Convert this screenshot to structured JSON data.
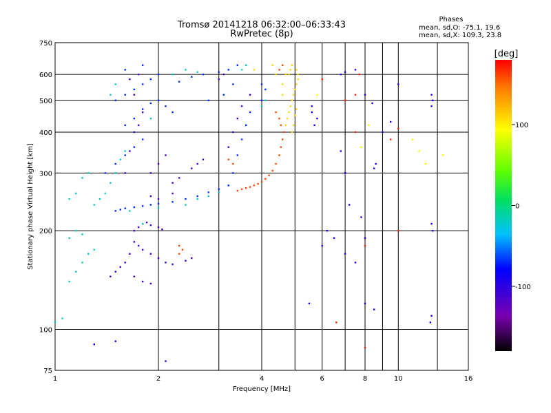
{
  "chart_data": {
    "type": "scatter",
    "title": "Tromsø 20141218 06:32:00–06:33:43",
    "subtitle": "RwPretec (8p)",
    "xlabel": "Frequency [MHz]",
    "ylabel": "Stationary phase Virtual Height [km]",
    "x_scale": "log2",
    "y_scale": "log",
    "xlim": [
      1,
      16
    ],
    "ylim": [
      75,
      750
    ],
    "x_ticks": [
      1,
      2,
      4,
      6,
      8,
      10,
      16
    ],
    "x_tick_labels": [
      "1",
      "2",
      "4",
      "6",
      "8",
      "10",
      "16"
    ],
    "x_grid_only": [
      3,
      5,
      7,
      9,
      13
    ],
    "y_ticks": [
      75,
      100,
      200,
      300,
      400,
      500,
      600,
      750
    ],
    "y_tick_labels": [
      "75",
      "100",
      "200",
      "300",
      "400",
      "500",
      "600",
      "750"
    ],
    "grid": true,
    "phase_stats": {
      "heading": "Phases",
      "line1": "mean, sd,O: -75.1, 19.6",
      "line2": "mean, sd,X: 109.3, 23.8"
    },
    "colorbar": {
      "label": "[deg]",
      "range": [
        -180,
        180
      ],
      "ticks": [
        100,
        0,
        -100
      ],
      "tick_labels": [
        "100",
        "0",
        "-100"
      ]
    },
    "series": [
      {
        "color_value_deg": -70,
        "points": [
          [
            1.5,
            230
          ],
          [
            1.55,
            232
          ],
          [
            1.6,
            234
          ],
          [
            1.7,
            236
          ],
          [
            1.8,
            238
          ],
          [
            1.9,
            240
          ],
          [
            2.0,
            242
          ],
          [
            2.2,
            245
          ],
          [
            2.4,
            250
          ],
          [
            2.6,
            255
          ],
          [
            2.8,
            262
          ],
          [
            3.0,
            268
          ],
          [
            3.2,
            275
          ],
          [
            1.4,
            300
          ],
          [
            1.5,
            320
          ],
          [
            1.6,
            340
          ],
          [
            1.7,
            360
          ],
          [
            1.8,
            380
          ],
          [
            1.6,
            420
          ],
          [
            1.7,
            440
          ],
          [
            1.8,
            470
          ],
          [
            1.9,
            490
          ],
          [
            2.0,
            500
          ],
          [
            2.1,
            480
          ],
          [
            2.2,
            460
          ],
          [
            1.5,
            500
          ],
          [
            1.6,
            520
          ],
          [
            1.7,
            540
          ],
          [
            1.8,
            560
          ],
          [
            1.9,
            580
          ],
          [
            2.0,
            600
          ],
          [
            1.6,
            620
          ],
          [
            1.8,
            640
          ],
          [
            2.3,
            570
          ],
          [
            2.5,
            590
          ],
          [
            2.7,
            600
          ],
          [
            3.0,
            610
          ],
          [
            3.2,
            620
          ],
          [
            3.4,
            640
          ],
          [
            2.8,
            500
          ],
          [
            3.1,
            520
          ],
          [
            3.3,
            560
          ],
          [
            3.3,
            300
          ],
          [
            3.4,
            340
          ],
          [
            3.5,
            380
          ],
          [
            3.6,
            420
          ],
          [
            3.7,
            460
          ],
          [
            4.0,
            500
          ],
          [
            4.1,
            540
          ],
          [
            4.0,
            560
          ]
        ]
      },
      {
        "color_value_deg": -110,
        "points": [
          [
            1.7,
            200
          ],
          [
            1.75,
            205
          ],
          [
            1.8,
            210
          ],
          [
            1.85,
            212
          ],
          [
            1.9,
            208
          ],
          [
            2.0,
            205
          ],
          [
            2.05,
            202
          ],
          [
            1.7,
            185
          ],
          [
            1.75,
            180
          ],
          [
            1.8,
            175
          ],
          [
            1.9,
            170
          ],
          [
            2.0,
            165
          ],
          [
            2.1,
            160
          ],
          [
            2.2,
            158
          ],
          [
            2.4,
            162
          ],
          [
            2.5,
            165
          ],
          [
            1.65,
            170
          ],
          [
            1.6,
            160
          ],
          [
            1.55,
            155
          ],
          [
            1.5,
            150
          ],
          [
            1.45,
            145
          ],
          [
            1.7,
            145
          ],
          [
            1.8,
            140
          ],
          [
            1.9,
            138
          ],
          [
            1.6,
            300
          ],
          [
            1.65,
            350
          ],
          [
            1.7,
            400
          ],
          [
            1.75,
            420
          ],
          [
            1.8,
            460
          ],
          [
            1.9,
            300
          ],
          [
            2.0,
            320
          ],
          [
            2.1,
            340
          ],
          [
            2.2,
            280
          ],
          [
            2.3,
            290
          ],
          [
            2.5,
            310
          ],
          [
            2.6,
            320
          ],
          [
            2.7,
            330
          ],
          [
            2.2,
            260
          ],
          [
            2.0,
            250
          ],
          [
            1.9,
            255
          ],
          [
            3.2,
            360
          ],
          [
            3.3,
            400
          ],
          [
            3.4,
            440
          ],
          [
            3.5,
            480
          ],
          [
            3.7,
            520
          ],
          [
            3.0,
            580
          ],
          [
            3.1,
            600
          ],
          [
            1.65,
            580
          ],
          [
            1.75,
            600
          ],
          [
            1.7,
            520
          ]
        ]
      },
      {
        "color_value_deg": -20,
        "points": [
          [
            1.3,
            240
          ],
          [
            1.35,
            250
          ],
          [
            1.4,
            260
          ],
          [
            1.45,
            280
          ],
          [
            1.5,
            300
          ],
          [
            1.2,
            290
          ],
          [
            1.25,
            300
          ],
          [
            1.1,
            250
          ],
          [
            1.15,
            260
          ],
          [
            1.0,
            105
          ],
          [
            1.05,
            108
          ],
          [
            1.1,
            140
          ],
          [
            1.15,
            150
          ],
          [
            1.2,
            160
          ],
          [
            1.25,
            170
          ],
          [
            1.3,
            175
          ],
          [
            1.1,
            190
          ],
          [
            1.15,
            200
          ],
          [
            1.2,
            195
          ],
          [
            2.4,
            240
          ],
          [
            2.6,
            250
          ],
          [
            2.8,
            255
          ],
          [
            3.0,
            262
          ],
          [
            2.2,
            600
          ],
          [
            2.4,
            620
          ],
          [
            2.6,
            610
          ],
          [
            1.5,
            560
          ],
          [
            1.45,
            520
          ],
          [
            4.0,
            480
          ],
          [
            4.1,
            500
          ],
          [
            3.5,
            620
          ],
          [
            3.6,
            640
          ],
          [
            1.8,
            210
          ],
          [
            1.65,
            230
          ],
          [
            2.0,
            235
          ],
          [
            1.55,
            330
          ],
          [
            1.6,
            350
          ],
          [
            1.9,
            440
          ]
        ]
      },
      {
        "color_value_deg": 160,
        "points": [
          [
            3.4,
            265
          ],
          [
            3.5,
            268
          ],
          [
            3.6,
            270
          ],
          [
            3.7,
            272
          ],
          [
            3.8,
            275
          ],
          [
            3.9,
            278
          ],
          [
            4.0,
            282
          ],
          [
            4.1,
            288
          ],
          [
            4.2,
            295
          ],
          [
            4.3,
            305
          ],
          [
            4.4,
            320
          ],
          [
            4.5,
            340
          ],
          [
            4.55,
            360
          ],
          [
            4.6,
            380
          ],
          [
            4.65,
            400
          ],
          [
            4.55,
            420
          ],
          [
            4.5,
            440
          ],
          [
            4.4,
            460
          ],
          [
            3.3,
            320
          ],
          [
            3.2,
            330
          ],
          [
            4.5,
            620
          ],
          [
            4.6,
            640
          ],
          [
            2.3,
            180
          ],
          [
            2.35,
            175
          ],
          [
            2.3,
            170
          ]
        ]
      },
      {
        "color_value_deg": 110,
        "points": [
          [
            4.7,
            420
          ],
          [
            4.75,
            440
          ],
          [
            4.8,
            460
          ],
          [
            4.85,
            480
          ],
          [
            4.9,
            500
          ],
          [
            4.95,
            520
          ],
          [
            5.0,
            540
          ],
          [
            5.05,
            560
          ],
          [
            5.1,
            580
          ],
          [
            5.1,
            600
          ],
          [
            5.05,
            620
          ],
          [
            4.8,
            600
          ],
          [
            4.85,
            620
          ],
          [
            4.9,
            640
          ],
          [
            5.0,
            450
          ],
          [
            5.05,
            470
          ],
          [
            4.6,
            520
          ],
          [
            4.6,
            560
          ],
          [
            4.7,
            600
          ],
          [
            4.3,
            640
          ],
          [
            4.4,
            600
          ],
          [
            3.8,
            620
          ],
          [
            4.9,
            400
          ],
          [
            4.95,
            420
          ]
        ]
      },
      {
        "color_value_deg": -90,
        "points": [
          [
            5.5,
            120
          ],
          [
            6.0,
            180
          ],
          [
            6.2,
            200
          ],
          [
            6.5,
            190
          ],
          [
            7.0,
            170
          ],
          [
            7.5,
            160
          ],
          [
            8.0,
            190
          ],
          [
            7.8,
            220
          ],
          [
            7.0,
            300
          ],
          [
            6.8,
            350
          ],
          [
            8.5,
            310
          ],
          [
            8.6,
            320
          ],
          [
            9.0,
            400
          ],
          [
            9.5,
            430
          ],
          [
            10.0,
            560
          ],
          [
            12.5,
            480
          ],
          [
            12.6,
            500
          ],
          [
            12.5,
            520
          ],
          [
            12.6,
            200
          ],
          [
            12.5,
            210
          ],
          [
            8.0,
            120
          ],
          [
            8.5,
            115
          ],
          [
            12.5,
            110
          ],
          [
            12.4,
            105
          ],
          [
            5.7,
            420
          ],
          [
            5.8,
            440
          ],
          [
            5.6,
            460
          ],
          [
            5.6,
            480
          ],
          [
            1.3,
            90
          ],
          [
            1.5,
            92
          ],
          [
            2.1,
            80
          ],
          [
            6.8,
            600
          ],
          [
            7.0,
            610
          ],
          [
            7.5,
            620
          ],
          [
            8.0,
            520
          ],
          [
            8.4,
            490
          ],
          [
            7.2,
            240
          ]
        ]
      },
      {
        "color_value_deg": 170,
        "points": [
          [
            6.6,
            105
          ],
          [
            8.0,
            88
          ],
          [
            10.0,
            200
          ],
          [
            8.0,
            180
          ],
          [
            7.0,
            500
          ],
          [
            7.5,
            520
          ],
          [
            10.0,
            410
          ],
          [
            9.5,
            380
          ],
          [
            7.5,
            400
          ],
          [
            6.0,
            580
          ],
          [
            7.7,
            600
          ]
        ]
      },
      {
        "color_value_deg": 90,
        "points": [
          [
            7.8,
            360
          ],
          [
            8.2,
            420
          ],
          [
            11.5,
            350
          ],
          [
            12.0,
            320
          ],
          [
            11.0,
            380
          ],
          [
            13.5,
            340
          ],
          [
            5.8,
            520
          ]
        ]
      }
    ]
  }
}
